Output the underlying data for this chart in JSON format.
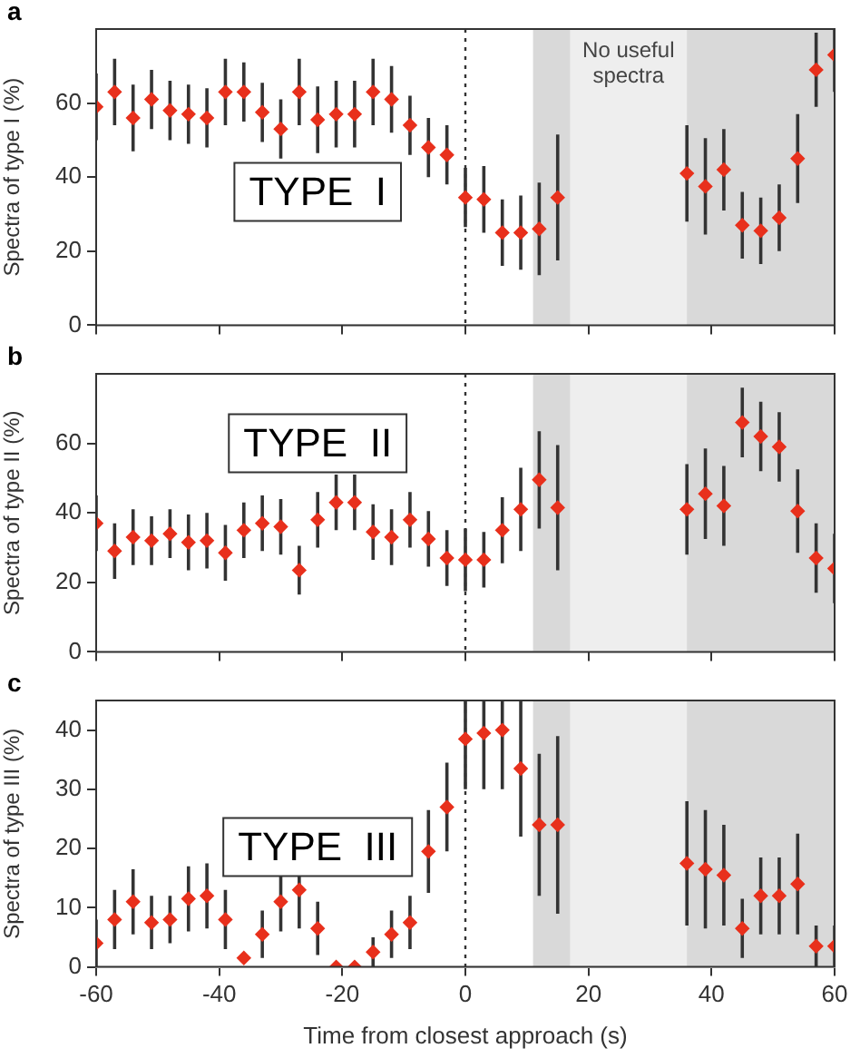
{
  "chart_data": [
    {
      "type": "scatter",
      "title": "a",
      "ylabel": "Spectra of type I (%)",
      "annotations": [
        "TYPE  I"
      ],
      "x": [
        -60,
        -57,
        -54,
        -51,
        -48,
        -45,
        -42,
        -39,
        -36,
        -33,
        -30,
        -27,
        -24,
        -21,
        -18,
        -15,
        -12,
        -9,
        -6,
        -3,
        0,
        3,
        6,
        9,
        12,
        15,
        36,
        39,
        42,
        45,
        48,
        51,
        54,
        57,
        60
      ],
      "series": [
        {
          "color": "#e8301c",
          "values": [
            59,
            63,
            56,
            61,
            58,
            57,
            56,
            63,
            63,
            57.5,
            53,
            63,
            55.5,
            57,
            57,
            63,
            61,
            54,
            48,
            46,
            34.5,
            34,
            25,
            25,
            26,
            34.5,
            41,
            37.5,
            42,
            27,
            25.5,
            29,
            45,
            69,
            73
          ],
          "errors": [
            9,
            9,
            9,
            8,
            8,
            8,
            8,
            9,
            8,
            8,
            8,
            9,
            9,
            9,
            9,
            9,
            9,
            8,
            8,
            8,
            8,
            9,
            9,
            10,
            12.5,
            17,
            13,
            13,
            11,
            9,
            9,
            9,
            12,
            10,
            [
              63,
              80
            ]
          ]
        }
      ],
      "xlim": [
        -60,
        60
      ],
      "xticks": [
        -60,
        -40,
        -20,
        0,
        20,
        40,
        60
      ],
      "ylim": [
        0,
        80
      ],
      "yticks": [
        0,
        20,
        40,
        60
      ],
      "bands": [
        {
          "axis": "x",
          "from": 11,
          "to": 60,
          "color": "#d9d9d9"
        },
        {
          "axis": "x",
          "from": 17,
          "to": 36,
          "color": "#eeeeee",
          "label": "No useful spectra"
        }
      ],
      "ref_lines": [
        {
          "axis": "x",
          "value": 0,
          "color": "#333333",
          "line_style": "dotted"
        }
      ],
      "tick_labels": "y",
      "marker": "diamond",
      "grid": false,
      "legend": false
    },
    {
      "type": "scatter",
      "title": "b",
      "ylabel": "Spectra of type II (%)",
      "annotations": [
        "TYPE  II"
      ],
      "x": [
        -60,
        -57,
        -54,
        -51,
        -48,
        -45,
        -42,
        -39,
        -36,
        -33,
        -30,
        -27,
        -24,
        -21,
        -18,
        -15,
        -12,
        -9,
        -6,
        -3,
        0,
        3,
        6,
        9,
        12,
        15,
        36,
        39,
        42,
        45,
        48,
        51,
        54,
        57,
        60
      ],
      "series": [
        {
          "color": "#e8301c",
          "values": [
            37,
            29,
            33,
            32,
            34,
            31.5,
            32,
            28.5,
            35,
            37,
            36,
            23.5,
            38,
            43,
            43,
            34.5,
            33,
            38,
            32.5,
            27,
            26.5,
            26.5,
            35,
            41,
            49.5,
            41.5,
            41,
            45.5,
            42,
            66,
            62,
            59,
            40.5,
            27,
            24
          ],
          "errors": [
            8,
            8,
            8,
            7,
            7,
            8,
            8,
            8,
            8,
            8,
            8,
            7,
            8,
            8,
            8,
            8,
            8,
            8,
            8,
            8,
            9,
            8,
            9.5,
            12,
            14,
            18,
            13,
            13,
            11.5,
            10,
            10,
            10,
            12,
            10,
            10
          ]
        }
      ],
      "xlim": [
        -60,
        60
      ],
      "xticks": [
        -60,
        -40,
        -20,
        0,
        20,
        40,
        60
      ],
      "ylim": [
        0,
        80
      ],
      "yticks": [
        0,
        20,
        40,
        60
      ],
      "bands": [
        {
          "axis": "x",
          "from": 11,
          "to": 60,
          "color": "#d9d9d9"
        },
        {
          "axis": "x",
          "from": 17,
          "to": 36,
          "color": "#eeeeee"
        }
      ],
      "ref_lines": [
        {
          "axis": "x",
          "value": 0,
          "color": "#333333",
          "line_style": "dotted"
        }
      ],
      "tick_labels": "y",
      "marker": "diamond",
      "grid": false,
      "legend": false
    },
    {
      "type": "scatter",
      "title": "c",
      "xlabel": "Time from closest approach (s)",
      "ylabel": "Spectra of type III (%)",
      "annotations": [
        "TYPE  III"
      ],
      "x": [
        -60,
        -57,
        -54,
        -51,
        -48,
        -45,
        -42,
        -39,
        -36,
        -33,
        -30,
        -27,
        -24,
        -21,
        -18,
        -15,
        -12,
        -9,
        -6,
        -3,
        0,
        3,
        6,
        9,
        12,
        15,
        36,
        39,
        42,
        45,
        48,
        51,
        54,
        57,
        60
      ],
      "series": [
        {
          "color": "#e8301c",
          "values": [
            4,
            8,
            11,
            7.5,
            8,
            11.5,
            12,
            8,
            1.5,
            5.5,
            11,
            13,
            6.5,
            0,
            0,
            2.5,
            5.5,
            7.5,
            19.5,
            27,
            38.5,
            39.5,
            40,
            33.5,
            24,
            24,
            17.5,
            16.5,
            15.5,
            6.5,
            12,
            12,
            14,
            3.5,
            3.5
          ],
          "errors": [
            4,
            5,
            5.5,
            4.5,
            4,
            5.5,
            5.5,
            5,
            null,
            4,
            5,
            6.5,
            4.5,
            null,
            null,
            2.5,
            4,
            4.5,
            7,
            7.5,
            [
              30,
              45
            ],
            [
              30,
              45
            ],
            [
              30,
              45
            ],
            11.5,
            12,
            15,
            10.5,
            10,
            8.5,
            5,
            6.5,
            6.5,
            8.5,
            3.5,
            3.5
          ]
        }
      ],
      "xlim": [
        -60,
        60
      ],
      "xticks": [
        -60,
        -40,
        -20,
        0,
        20,
        40,
        60
      ],
      "ylim": [
        0,
        45
      ],
      "yticks": [
        0,
        10,
        20,
        30,
        40
      ],
      "bands": [
        {
          "axis": "x",
          "from": 11,
          "to": 60,
          "color": "#d9d9d9"
        },
        {
          "axis": "x",
          "from": 17,
          "to": 36,
          "color": "#eeeeee"
        }
      ],
      "ref_lines": [
        {
          "axis": "x",
          "value": 0,
          "color": "#333333",
          "line_style": "dotted"
        }
      ],
      "marker": "diamond",
      "grid": false,
      "legend": false
    }
  ]
}
